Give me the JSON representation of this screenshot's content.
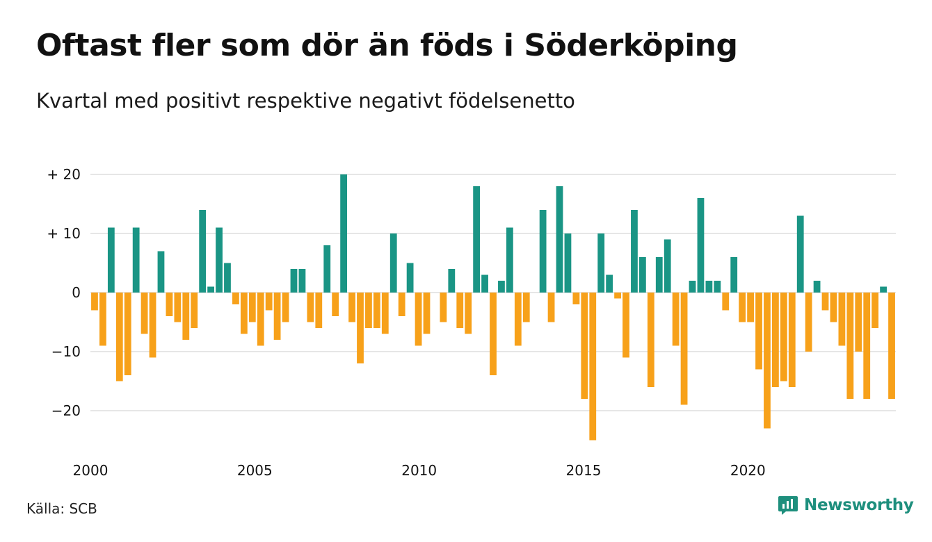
{
  "title": "Oftast fler som dör än föds i Söderköping",
  "subtitle": "Kvartal med positivt respektive negativt födelsenetto",
  "source": "Källa: SCB",
  "brand": {
    "name": "Newsworthy",
    "icon": "newsworthy-logo-icon"
  },
  "colors": {
    "positive": "#1a9585",
    "negative": "#f7a11a",
    "grid": "#dddddd",
    "brand": "#1e8f7d"
  },
  "chart_data": {
    "type": "bar",
    "title": "Oftast fler som dör än föds i Söderköping",
    "subtitle": "Kvartal med positivt respektive negativt födelsenetto",
    "xlabel": "",
    "ylabel": "",
    "x_ticks": [
      "2000",
      "2005",
      "2010",
      "2015",
      "2020"
    ],
    "y_ticks": [
      {
        "value": 20,
        "label": "+ 20"
      },
      {
        "value": 10,
        "label": "+ 10"
      },
      {
        "value": 0,
        "label": "0"
      },
      {
        "value": -10,
        "label": "−10"
      },
      {
        "value": -20,
        "label": "−20"
      }
    ],
    "x_start": 2000,
    "x_end": 2024.5,
    "ylim": [
      -25,
      20
    ],
    "grid": true,
    "legend": "none",
    "values": [
      -3,
      -9,
      11,
      -15,
      -14,
      11,
      -7,
      -11,
      7,
      -4,
      -5,
      -8,
      -6,
      14,
      1,
      11,
      5,
      -2,
      -7,
      -5,
      -9,
      -3,
      -8,
      -5,
      4,
      4,
      -5,
      -6,
      8,
      -4,
      20,
      -5,
      -12,
      -6,
      -6,
      -7,
      10,
      -4,
      5,
      -9,
      -7,
      0,
      -5,
      4,
      -6,
      -7,
      18,
      3,
      -14,
      2,
      11,
      -9,
      -5,
      0,
      14,
      -5,
      18,
      10,
      -2,
      -18,
      -25,
      10,
      3,
      -1,
      -11,
      14,
      6,
      -16,
      6,
      9,
      -9,
      -19,
      2,
      16,
      2,
      2,
      -3,
      6,
      -5,
      -5,
      -13,
      -23,
      -16,
      -15,
      -16,
      13,
      -10,
      2,
      -3,
      -5,
      -9,
      -18,
      -10,
      -18,
      -6,
      1,
      -18
    ]
  }
}
